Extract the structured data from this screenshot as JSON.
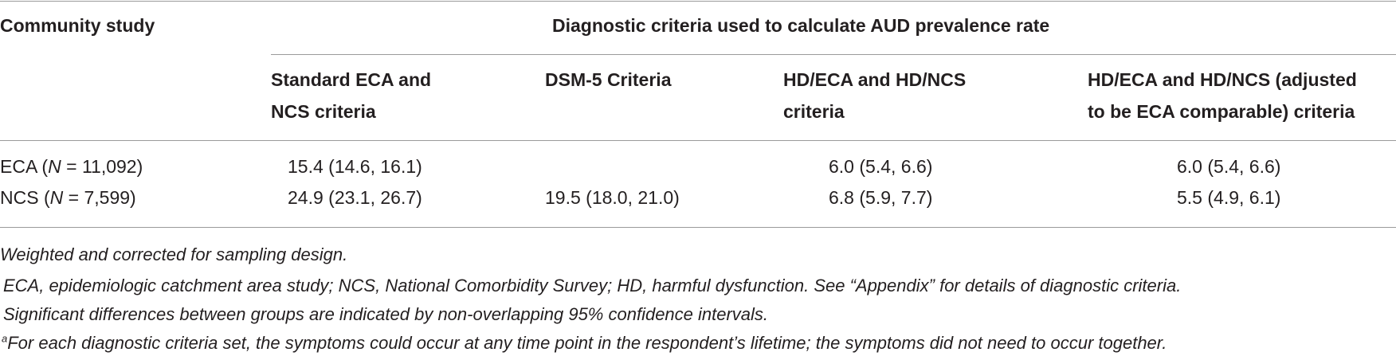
{
  "table": {
    "stub_header": "Community study",
    "spanner_header": "Diagnostic criteria used to calculate AUD prevalence rate",
    "columns": [
      {
        "line1": "Standard ECA and",
        "line2": "NCS criteria"
      },
      {
        "line1": "DSM-5 Criteria",
        "line2": ""
      },
      {
        "line1": "HD/ECA and HD/NCS",
        "line2": "criteria"
      },
      {
        "line1": "HD/ECA and HD/NCS (adjusted",
        "line2": "to be ECA comparable) criteria"
      }
    ],
    "rows": [
      {
        "name": "ECA",
        "n_label": "N",
        "n_value": "11,092",
        "cells": [
          "15.4 (14.6, 16.1)",
          "",
          "6.0 (5.4, 6.6)",
          "6.0 (5.4, 6.6)"
        ]
      },
      {
        "name": "NCS",
        "n_label": "N",
        "n_value": "7,599",
        "cells": [
          "24.9 (23.1, 26.7)",
          "19.5 (18.0, 21.0)",
          "6.8 (5.9, 7.7)",
          "5.5 (4.9, 6.1)"
        ]
      }
    ]
  },
  "footnotes": {
    "line1": "Weighted and corrected for sampling design.",
    "line2": "ECA, epidemiologic catchment area study; NCS, National Comorbidity Survey; HD, harmful dysfunction. See “Appendix” for details of diagnostic criteria.",
    "line3": "Significant differences between groups are indicated by non-overlapping 95% confidence intervals.",
    "line4_marker": "a",
    "line4": "For each diagnostic criteria set, the symptoms could occur at any time point in the respondent’s lifetime; the symptoms did not need to occur together."
  }
}
